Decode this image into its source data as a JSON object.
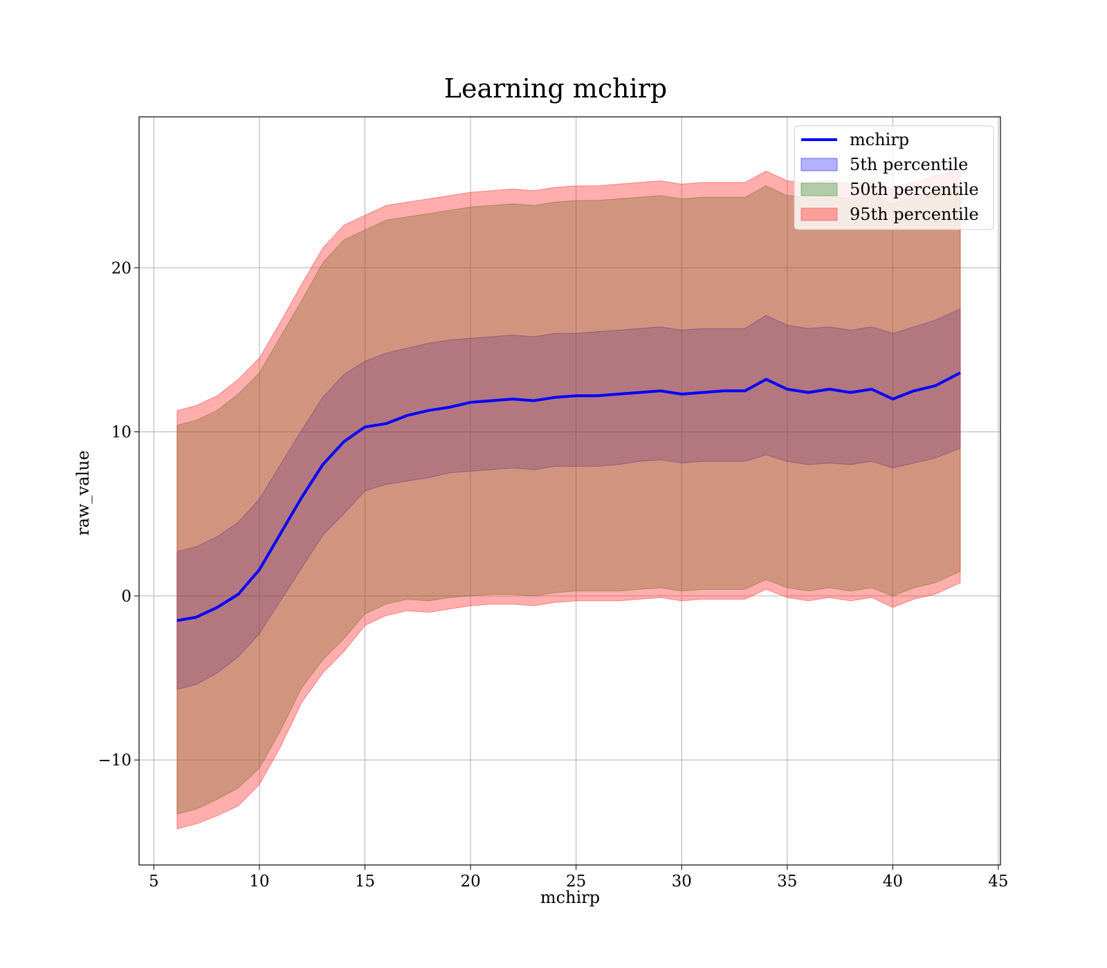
{
  "chart_data": {
    "type": "area",
    "title": "Learning mchirp",
    "xlabel": "mchirp",
    "ylabel": "raw_value",
    "xlim": [
      4.3,
      45.1
    ],
    "ylim": [
      -16.4,
      29.2
    ],
    "xticks": [
      5,
      10,
      15,
      20,
      25,
      30,
      35,
      40,
      45
    ],
    "xtick_labels": [
      "5",
      "10",
      "15",
      "20",
      "25",
      "30",
      "35",
      "40",
      "45"
    ],
    "yticks": [
      -10,
      0,
      10,
      20
    ],
    "ytick_labels": [
      "−10",
      "0",
      "10",
      "20"
    ],
    "grid": true,
    "legend_position": "top-right",
    "x": [
      6.1,
      7.0,
      8.0,
      9.0,
      10.0,
      11.0,
      12.0,
      13.0,
      14.0,
      15.0,
      16.0,
      17.0,
      18.0,
      19.0,
      20.0,
      21.0,
      22.0,
      23.0,
      24.0,
      25.0,
      26.0,
      27.0,
      28.0,
      29.0,
      30.0,
      31.0,
      32.0,
      33.0,
      34.0,
      35.0,
      36.0,
      37.0,
      38.0,
      39.0,
      40.0,
      41.0,
      42.0,
      43.2
    ],
    "series": [
      {
        "name": "mchirp",
        "kind": "line",
        "color": "#0000ff",
        "values": [
          -1.5,
          -1.3,
          -0.7,
          0.1,
          1.6,
          3.8,
          6.0,
          8.0,
          9.4,
          10.3,
          10.5,
          11.0,
          11.3,
          11.5,
          11.8,
          11.9,
          12.0,
          11.9,
          12.1,
          12.2,
          12.2,
          12.3,
          12.4,
          12.5,
          12.3,
          12.4,
          12.5,
          12.5,
          13.2,
          12.6,
          12.4,
          12.6,
          12.4,
          12.6,
          12.0,
          12.5,
          12.8,
          13.6
        ]
      },
      {
        "name": "5th percentile",
        "kind": "band",
        "color": "#0000ff",
        "opacity": 0.3,
        "low": [
          -5.7,
          -5.4,
          -4.7,
          -3.7,
          -2.3,
          -0.3,
          1.7,
          3.7,
          5.0,
          6.4,
          6.8,
          7.0,
          7.2,
          7.5,
          7.6,
          7.7,
          7.8,
          7.7,
          7.9,
          7.9,
          7.9,
          8.0,
          8.2,
          8.3,
          8.1,
          8.2,
          8.2,
          8.2,
          8.6,
          8.2,
          8.0,
          8.1,
          8.0,
          8.2,
          7.8,
          8.1,
          8.4,
          9.0
        ],
        "high": [
          2.7,
          3.0,
          3.6,
          4.5,
          5.9,
          8.0,
          10.1,
          12.1,
          13.5,
          14.3,
          14.8,
          15.1,
          15.4,
          15.6,
          15.7,
          15.8,
          15.9,
          15.8,
          16.0,
          16.0,
          16.1,
          16.2,
          16.3,
          16.4,
          16.2,
          16.3,
          16.3,
          16.3,
          17.1,
          16.5,
          16.3,
          16.4,
          16.2,
          16.4,
          16.0,
          16.4,
          16.8,
          17.5
        ]
      },
      {
        "name": "50th percentile",
        "kind": "band",
        "color": "#228b22",
        "opacity": 0.35,
        "low": [
          -13.3,
          -13.0,
          -12.4,
          -11.7,
          -10.5,
          -8.2,
          -5.6,
          -3.9,
          -2.6,
          -1.1,
          -0.5,
          -0.2,
          -0.3,
          -0.1,
          0.0,
          0.1,
          0.1,
          0.0,
          0.2,
          0.3,
          0.3,
          0.3,
          0.4,
          0.5,
          0.3,
          0.4,
          0.4,
          0.4,
          1.0,
          0.5,
          0.3,
          0.5,
          0.3,
          0.5,
          0.0,
          0.5,
          0.8,
          1.5
        ],
        "high": [
          10.4,
          10.7,
          11.3,
          12.3,
          13.6,
          15.8,
          18.0,
          20.3,
          21.7,
          22.3,
          22.9,
          23.1,
          23.3,
          23.5,
          23.7,
          23.8,
          23.9,
          23.8,
          24.0,
          24.1,
          24.1,
          24.2,
          24.3,
          24.4,
          24.2,
          24.3,
          24.3,
          24.3,
          25.0,
          24.4,
          24.3,
          24.4,
          24.2,
          24.4,
          23.9,
          24.3,
          24.7,
          25.0
        ]
      },
      {
        "name": "95th percentile",
        "kind": "band",
        "color": "#ff3333",
        "opacity": 0.4,
        "low": [
          -14.2,
          -13.9,
          -13.4,
          -12.8,
          -11.5,
          -9.2,
          -6.5,
          -4.7,
          -3.4,
          -1.8,
          -1.2,
          -0.9,
          -1.0,
          -0.8,
          -0.6,
          -0.5,
          -0.5,
          -0.6,
          -0.4,
          -0.3,
          -0.3,
          -0.3,
          -0.2,
          -0.1,
          -0.3,
          -0.2,
          -0.2,
          -0.2,
          0.4,
          -0.1,
          -0.3,
          -0.1,
          -0.3,
          -0.1,
          -0.7,
          -0.2,
          0.1,
          0.8
        ],
        "high": [
          11.3,
          11.6,
          12.2,
          13.2,
          14.5,
          16.7,
          19.0,
          21.2,
          22.6,
          23.2,
          23.8,
          24.0,
          24.2,
          24.4,
          24.6,
          24.7,
          24.8,
          24.7,
          24.9,
          25.0,
          25.0,
          25.1,
          25.2,
          25.3,
          25.1,
          25.2,
          25.2,
          25.2,
          25.9,
          25.3,
          25.2,
          25.3,
          25.1,
          25.3,
          24.8,
          25.2,
          25.6,
          25.9
        ]
      }
    ]
  }
}
